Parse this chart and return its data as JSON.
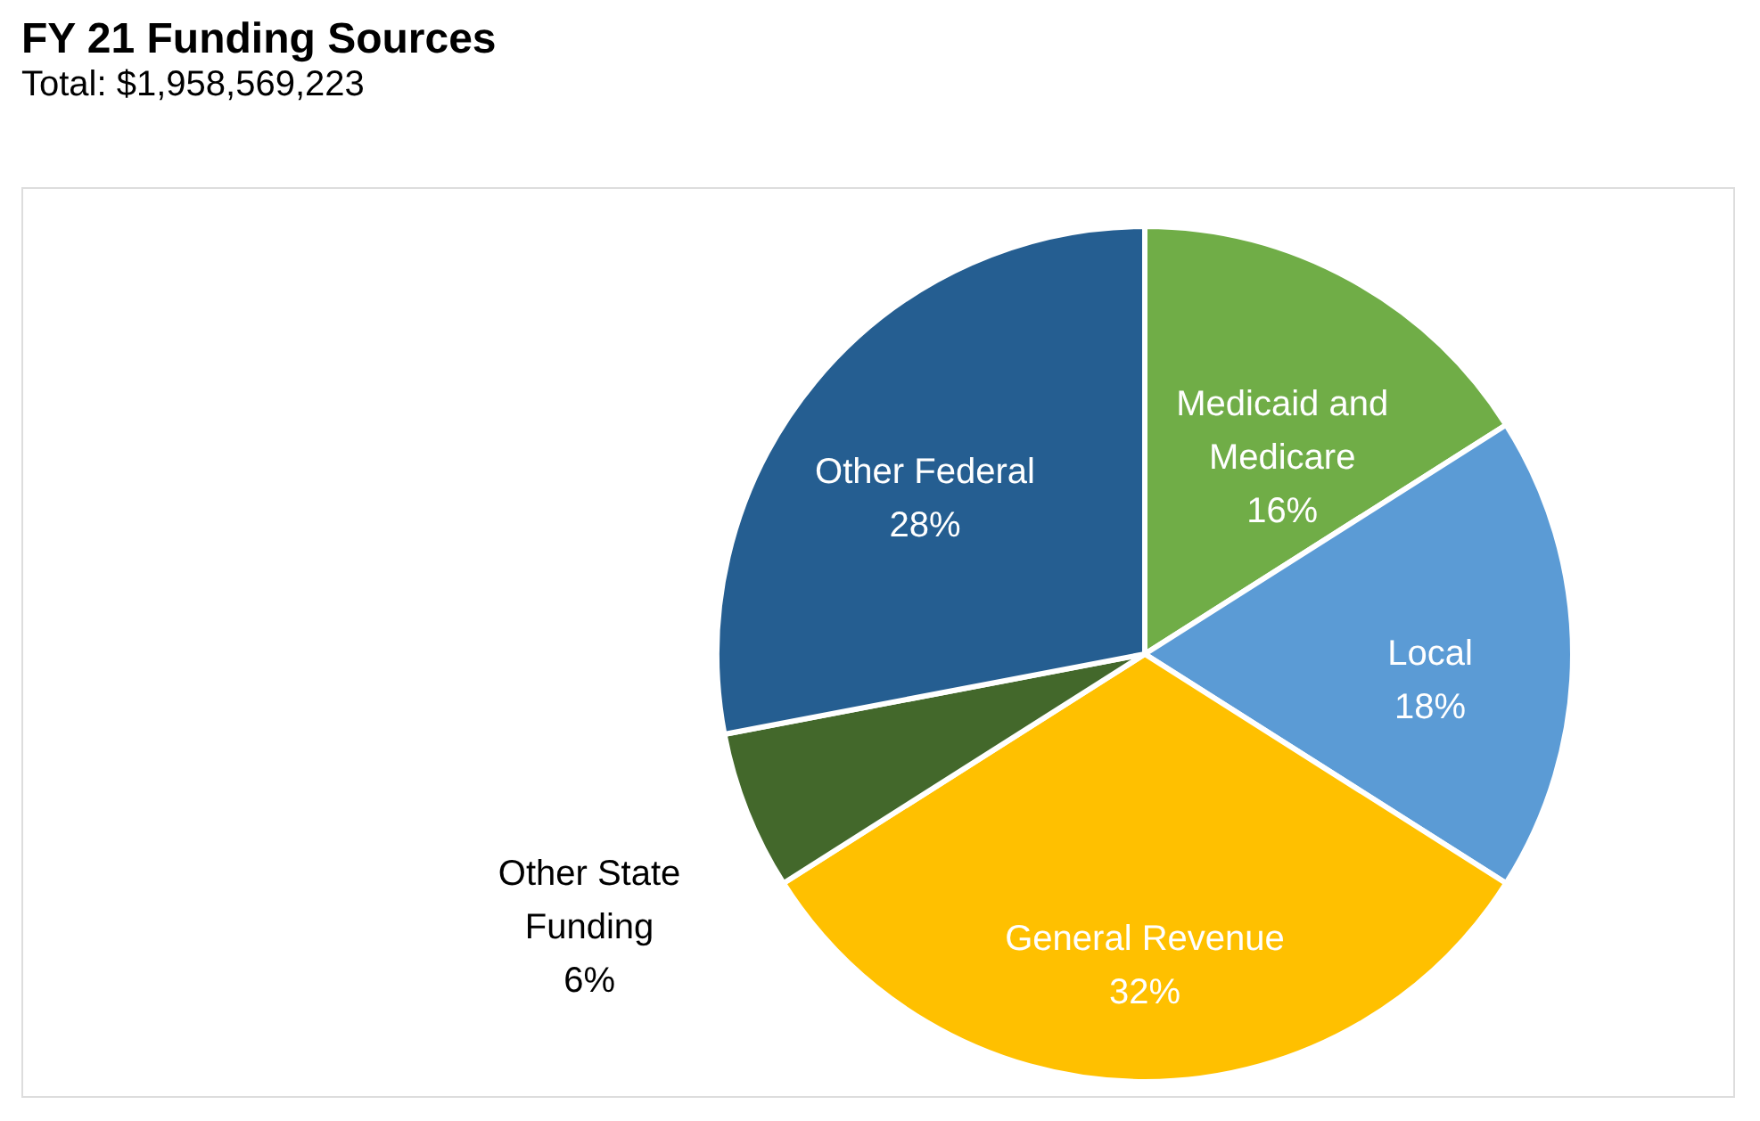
{
  "chart_data": {
    "type": "pie",
    "title": "FY 21 Funding Sources",
    "subtitle": "Total: $1,958,569,223",
    "categories": [
      "Medicaid and Medicare",
      "Local",
      "General Revenue",
      "Other State Funding",
      "Other Federal"
    ],
    "values": [
      16,
      18,
      32,
      6,
      28
    ],
    "value_labels": [
      "16%",
      "18%",
      "32%",
      "6%",
      "28%"
    ],
    "colors": [
      "#70ad47",
      "#5b9bd5",
      "#ffc000",
      "#43682b",
      "#255e91"
    ],
    "legend": false
  }
}
